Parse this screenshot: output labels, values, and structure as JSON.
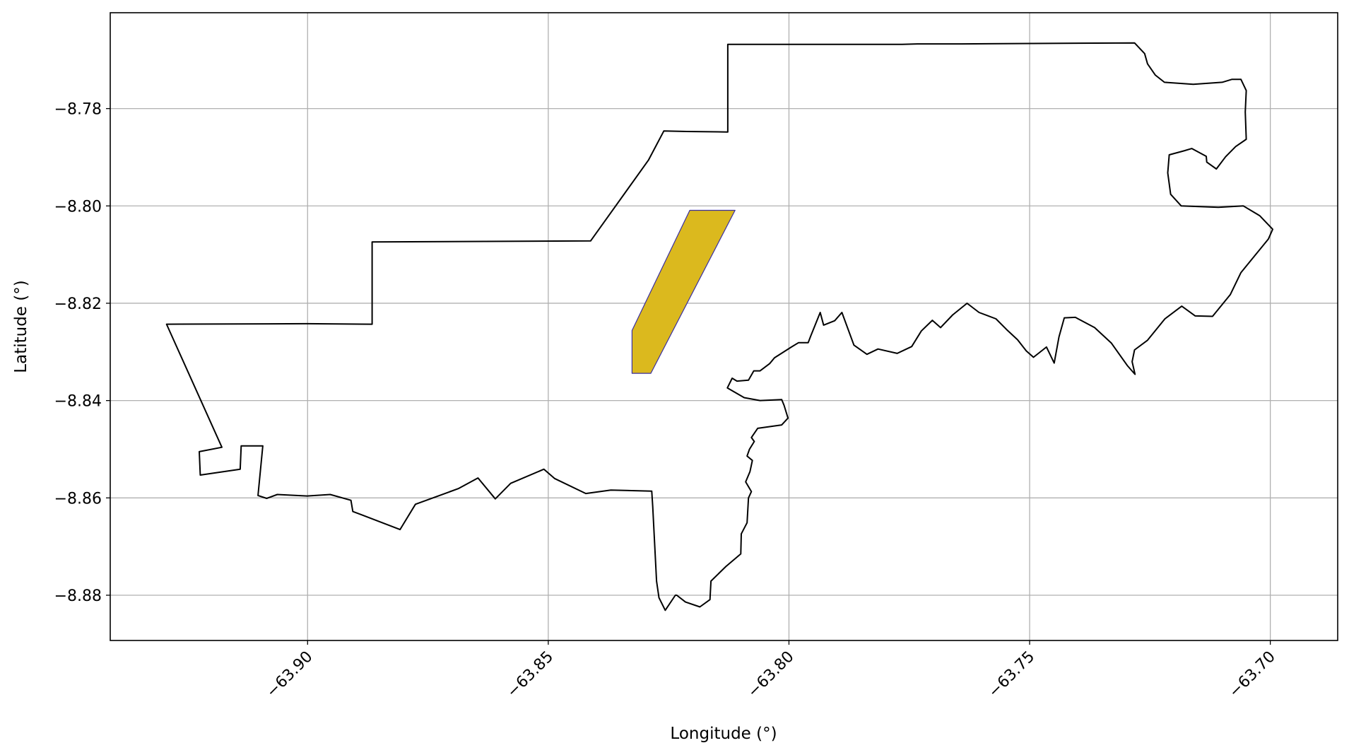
{
  "chart_data": {
    "type": "map",
    "xlabel": "Longitude (°)",
    "ylabel": "Latitude (°)",
    "xlim": [
      -63.941,
      -63.686
    ],
    "ylim": [
      -8.8893,
      -8.7603
    ],
    "xticks": [
      -63.9,
      -63.85,
      -63.8,
      -63.75,
      -63.7
    ],
    "xtick_labels": [
      "−63.90",
      "−63.85",
      "−63.80",
      "−63.75",
      "−63.70"
    ],
    "yticks": [
      -8.78,
      -8.8,
      -8.82,
      -8.84,
      -8.86,
      -8.88
    ],
    "ytick_labels": [
      "−8.78",
      "−8.80",
      "−8.82",
      "−8.84",
      "−8.86",
      "−8.88"
    ],
    "grid": true,
    "colors": {
      "boundary": "#000000",
      "highlight_fill": "#dbb91e",
      "highlight_edge": "#3a2fa0",
      "grid": "#b0b0b0"
    },
    "boundary_polygon": [
      [
        -63.9293,
        -8.8243
      ],
      [
        -63.9002,
        -8.8242
      ],
      [
        -63.8866,
        -8.8243
      ],
      [
        -63.8866,
        -8.8074
      ],
      [
        -63.8412,
        -8.8072
      ],
      [
        -63.8292,
        -8.7906
      ],
      [
        -63.826,
        -8.7846
      ],
      [
        -63.8212,
        -8.7847
      ],
      [
        -63.8127,
        -8.7848
      ],
      [
        -63.8127,
        -8.7668
      ],
      [
        -63.7765,
        -8.7668
      ],
      [
        -63.7733,
        -8.7667
      ],
      [
        -63.7641,
        -8.7667
      ],
      [
        -63.7282,
        -8.7665
      ],
      [
        -63.7261,
        -8.7687
      ],
      [
        -63.7255,
        -8.7708
      ],
      [
        -63.7239,
        -8.7731
      ],
      [
        -63.722,
        -8.7746
      ],
      [
        -63.716,
        -8.775
      ],
      [
        -63.71,
        -8.7746
      ],
      [
        -63.708,
        -8.774
      ],
      [
        -63.7061,
        -8.774
      ],
      [
        -63.705,
        -8.7763
      ],
      [
        -63.7052,
        -8.7807
      ],
      [
        -63.705,
        -8.7863
      ],
      [
        -63.7072,
        -8.7878
      ],
      [
        -63.7093,
        -8.7899
      ],
      [
        -63.7112,
        -8.7924
      ],
      [
        -63.7132,
        -8.791
      ],
      [
        -63.7133,
        -8.7898
      ],
      [
        -63.7163,
        -8.7882
      ],
      [
        -63.718,
        -8.7887
      ],
      [
        -63.721,
        -8.7895
      ],
      [
        -63.7213,
        -8.7932
      ],
      [
        -63.7207,
        -8.7976
      ],
      [
        -63.7185,
        -8.8
      ],
      [
        -63.7108,
        -8.8003
      ],
      [
        -63.7056,
        -8.8
      ],
      [
        -63.7022,
        -8.802
      ],
      [
        -63.6995,
        -8.8048
      ],
      [
        -63.7004,
        -8.8068
      ],
      [
        -63.7061,
        -8.8137
      ],
      [
        -63.7083,
        -8.8182
      ],
      [
        -63.712,
        -8.8227
      ],
      [
        -63.7156,
        -8.8226
      ],
      [
        -63.7184,
        -8.8206
      ],
      [
        -63.7219,
        -8.8232
      ],
      [
        -63.7255,
        -8.8276
      ],
      [
        -63.7282,
        -8.8296
      ],
      [
        -63.7287,
        -8.832
      ],
      [
        -63.7281,
        -8.8346
      ],
      [
        -63.7297,
        -8.8328
      ],
      [
        -63.733,
        -8.8282
      ],
      [
        -63.7365,
        -8.825
      ],
      [
        -63.7405,
        -8.8229
      ],
      [
        -63.7428,
        -8.823
      ],
      [
        -63.7439,
        -8.8269
      ],
      [
        -63.7449,
        -8.8323
      ],
      [
        -63.7465,
        -8.829
      ],
      [
        -63.7492,
        -8.8311
      ],
      [
        -63.7507,
        -8.8298
      ],
      [
        -63.7525,
        -8.8275
      ],
      [
        -63.7548,
        -8.8254
      ],
      [
        -63.757,
        -8.8232
      ],
      [
        -63.7605,
        -8.8219
      ],
      [
        -63.763,
        -8.82
      ],
      [
        -63.766,
        -8.8224
      ],
      [
        -63.7685,
        -8.825
      ],
      [
        -63.7702,
        -8.8235
      ],
      [
        -63.7725,
        -8.8257
      ],
      [
        -63.7745,
        -8.8289
      ],
      [
        -63.7775,
        -8.8303
      ],
      [
        -63.7815,
        -8.8294
      ],
      [
        -63.7838,
        -8.8305
      ],
      [
        -63.7865,
        -8.8286
      ],
      [
        -63.789,
        -8.8219
      ],
      [
        -63.7905,
        -8.8236
      ],
      [
        -63.7928,
        -8.8245
      ],
      [
        -63.7935,
        -8.8219
      ],
      [
        -63.7955,
        -8.8268
      ],
      [
        -63.796,
        -8.8281
      ],
      [
        -63.798,
        -8.8281
      ],
      [
        -63.7995,
        -8.829
      ],
      [
        -63.803,
        -8.8312
      ],
      [
        -63.804,
        -8.8324
      ],
      [
        -63.806,
        -8.8339
      ],
      [
        -63.8073,
        -8.8339
      ],
      [
        -63.8084,
        -8.8358
      ],
      [
        -63.8108,
        -8.836
      ],
      [
        -63.8118,
        -8.8354
      ],
      [
        -63.8128,
        -8.8374
      ],
      [
        -63.8093,
        -8.8394
      ],
      [
        -63.806,
        -8.84
      ],
      [
        -63.8015,
        -8.8398
      ],
      [
        -63.801,
        -8.841
      ],
      [
        -63.8002,
        -8.8436
      ],
      [
        -63.8015,
        -8.845
      ],
      [
        -63.8065,
        -8.8457
      ],
      [
        -63.8078,
        -8.8476
      ],
      [
        -63.8072,
        -8.8484
      ],
      [
        -63.8082,
        -8.85
      ],
      [
        -63.8087,
        -8.8514
      ],
      [
        -63.8076,
        -8.8523
      ],
      [
        -63.8081,
        -8.8546
      ],
      [
        -63.809,
        -8.8567
      ],
      [
        -63.8078,
        -8.8587
      ],
      [
        -63.8084,
        -8.86
      ],
      [
        -63.8087,
        -8.8651
      ],
      [
        -63.8099,
        -8.8674
      ],
      [
        -63.81,
        -8.8715
      ],
      [
        -63.8131,
        -8.8741
      ],
      [
        -63.8162,
        -8.8771
      ],
      [
        -63.8164,
        -8.8809
      ],
      [
        -63.8185,
        -8.8824
      ],
      [
        -63.8215,
        -8.8814
      ],
      [
        -63.8233,
        -8.88
      ],
      [
        -63.8236,
        -8.88
      ],
      [
        -63.8257,
        -8.8831
      ],
      [
        -63.827,
        -8.8805
      ],
      [
        -63.8275,
        -8.8771
      ],
      [
        -63.8283,
        -8.8618
      ],
      [
        -63.8285,
        -8.8586
      ],
      [
        -63.837,
        -8.8584
      ],
      [
        -63.8422,
        -8.8591
      ],
      [
        -63.8487,
        -8.856
      ],
      [
        -63.8509,
        -8.8541
      ],
      [
        -63.8578,
        -8.857
      ],
      [
        -63.861,
        -8.8602
      ],
      [
        -63.8646,
        -8.8559
      ],
      [
        -63.8687,
        -8.8581
      ],
      [
        -63.8776,
        -8.8613
      ],
      [
        -63.8808,
        -8.8665
      ],
      [
        -63.8887,
        -8.8635
      ],
      [
        -63.8906,
        -8.8628
      ],
      [
        -63.891,
        -8.8605
      ],
      [
        -63.8953,
        -8.8593
      ],
      [
        -63.9001,
        -8.8596
      ],
      [
        -63.9063,
        -8.8593
      ],
      [
        -63.9085,
        -8.8601
      ],
      [
        -63.9103,
        -8.8595
      ],
      [
        -63.9093,
        -8.8493
      ],
      [
        -63.9138,
        -8.8493
      ],
      [
        -63.914,
        -8.8541
      ],
      [
        -63.9223,
        -8.8553
      ],
      [
        -63.9225,
        -8.8505
      ],
      [
        -63.9178,
        -8.8496
      ],
      [
        -63.9293,
        -8.8243
      ]
    ],
    "highlight_polygon": [
      [
        -63.8206,
        -8.8009
      ],
      [
        -63.8112,
        -8.8009
      ],
      [
        -63.8287,
        -8.8344
      ],
      [
        -63.8326,
        -8.8344
      ],
      [
        -63.8326,
        -8.8256
      ]
    ]
  }
}
